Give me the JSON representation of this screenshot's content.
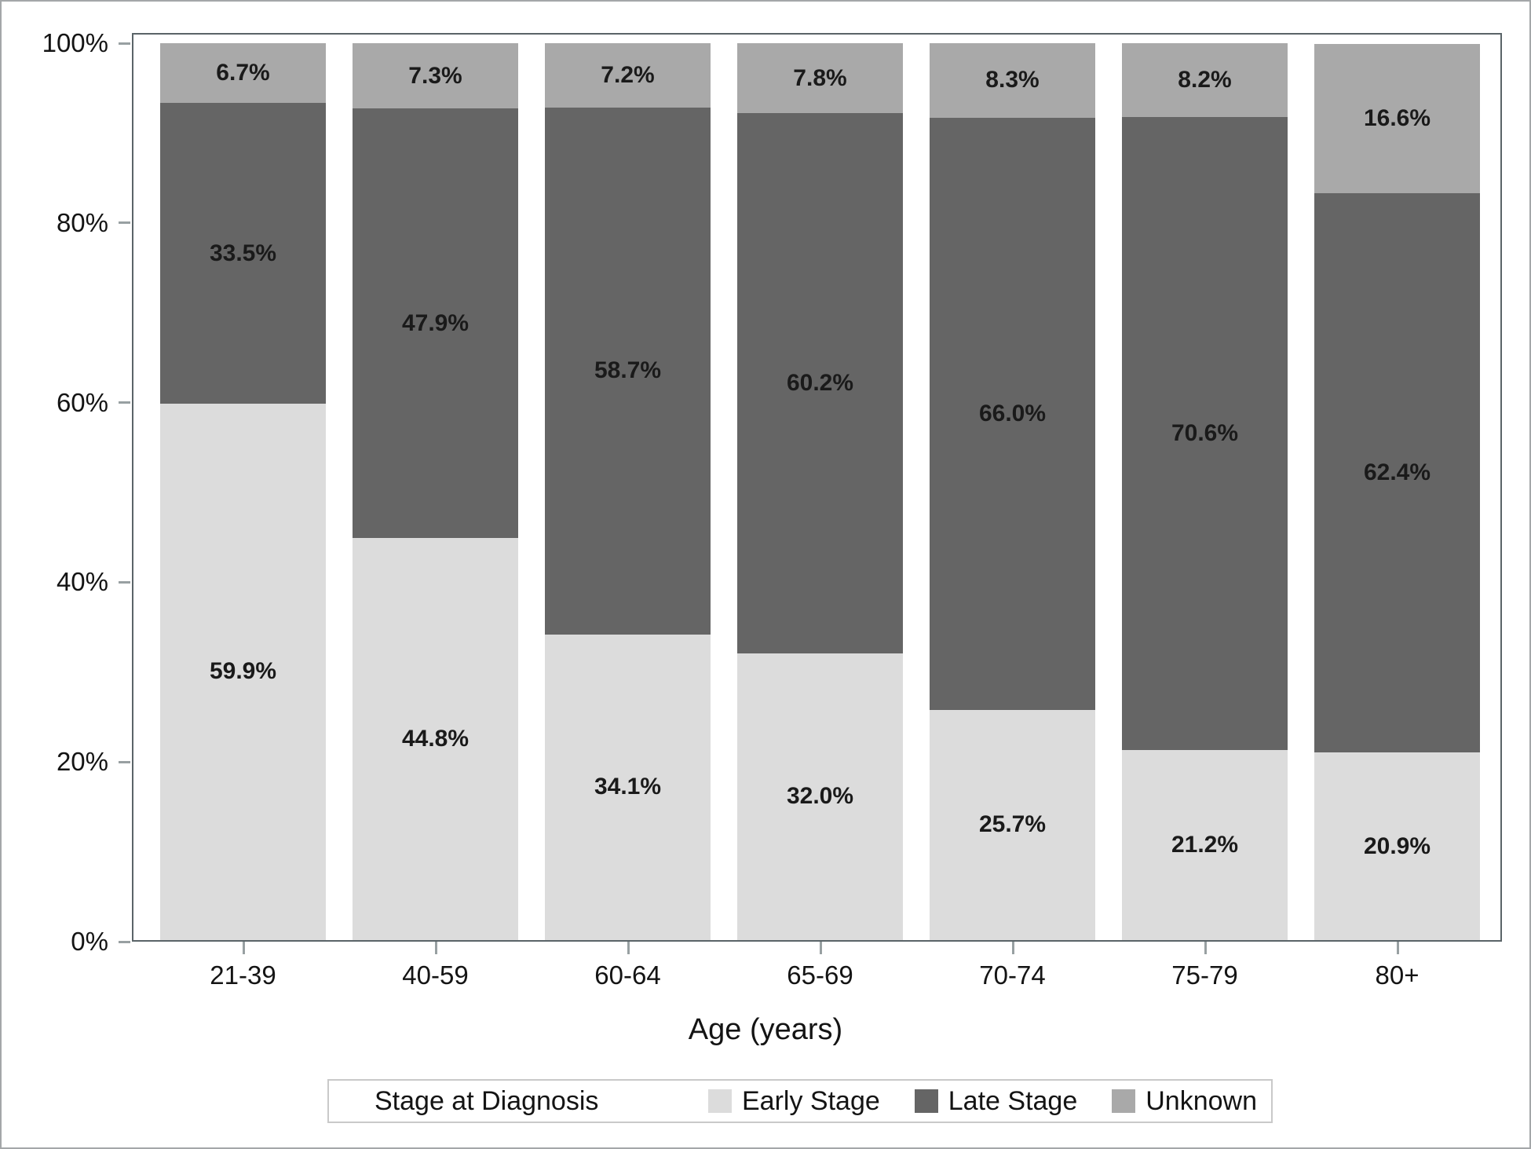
{
  "chart_data": {
    "type": "bar",
    "stacked": true,
    "orientation": "vertical",
    "categories": [
      "21-39",
      "40-59",
      "60-64",
      "65-69",
      "70-74",
      "75-79",
      "80+"
    ],
    "series": [
      {
        "name": "Early Stage",
        "color": "#dcdcdc",
        "values": [
          59.9,
          44.8,
          34.1,
          32.0,
          25.7,
          21.2,
          20.9
        ]
      },
      {
        "name": "Late Stage",
        "color": "#656565",
        "values": [
          33.5,
          47.9,
          58.7,
          60.2,
          66.0,
          70.6,
          62.4
        ]
      },
      {
        "name": "Unknown",
        "color": "#a9a9a9",
        "values": [
          6.7,
          7.3,
          7.2,
          7.8,
          8.3,
          8.2,
          16.6
        ]
      }
    ],
    "title": "",
    "xlabel": "Age (years)",
    "ylabel": "",
    "ylim": [
      0,
      100
    ],
    "yticks": {
      "percents": [
        0,
        20,
        40,
        60,
        80,
        100
      ],
      "labels": [
        "0%",
        "20%",
        "40%",
        "60%",
        "80%",
        "100%"
      ]
    },
    "value_label_suffix": "%",
    "grid": false,
    "legend": {
      "title": "Stage at Diagnosis",
      "position": "bottom"
    }
  },
  "style": {
    "frame_color": "#5a6468",
    "tick_color": "#98a0a2",
    "text_color": "#141414",
    "outer_border_color": "#a4a7a9",
    "legend_border_color": "#c9c9c9"
  }
}
